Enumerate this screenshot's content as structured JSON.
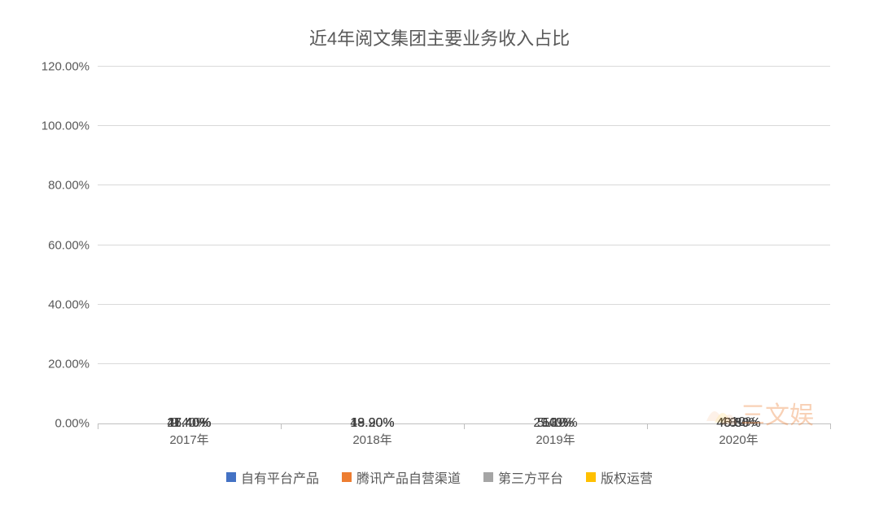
{
  "chart": {
    "type": "stacked-bar",
    "title": "近4年阅文集团主要业务收入占比",
    "title_fontsize": 22,
    "title_color": "#595959",
    "background_color": "#ffffff",
    "grid_color": "#d9d9d9",
    "axis_color": "#bfbfbf",
    "label_color": "#595959",
    "label_fontsize": 15,
    "data_label_fontsize": 16,
    "data_label_color": "#404040",
    "ylim": [
      0,
      120
    ],
    "ytick_step": 20,
    "yticks": [
      "0.00%",
      "20.00%",
      "40.00%",
      "60.00%",
      "80.00%",
      "100.00%",
      "120.00%"
    ],
    "categories": [
      "2017年",
      "2018年",
      "2019年",
      "2020年"
    ],
    "series": [
      {
        "name": "自有平台产品",
        "color": "#4472c4"
      },
      {
        "name": "腾讯产品自营渠道",
        "color": "#ed7d31"
      },
      {
        "name": "第三方平台",
        "color": "#a5a5a5"
      },
      {
        "name": "版权运营",
        "color": "#ffc000"
      }
    ],
    "bar_width_pct": 18,
    "stacks": [
      [
        {
          "value": 47.4,
          "label": "47.40%",
          "label_offset": 0
        },
        {
          "value": 26.4,
          "label": "26.40%",
          "label_offset": 0
        },
        {
          "value": 11.4,
          "label": "11.40%",
          "label_offset": 0
        },
        {
          "value": 9.4,
          "label": "9.40%",
          "label_offset": 0
        }
      ],
      [
        {
          "value": 43.9,
          "label": "43.90%",
          "label_offset": 0
        },
        {
          "value": 18.9,
          "label": "18.90%",
          "label_offset": 0
        },
        {
          "value": 13.2,
          "label": "13.20%",
          "label_offset": 0
        },
        {
          "value": 19.9,
          "label": "19.90%",
          "label_offset": 0
        }
      ],
      [
        {
          "value": 29.1,
          "label": "29.10%",
          "label_offset": 0
        },
        {
          "value": 10.0,
          "label": "10%",
          "label_offset": 0
        },
        {
          "value": 5.4,
          "label": "5.40%",
          "label_offset": 0
        },
        {
          "value": 53.0,
          "label": "53%",
          "label_offset": 0
        }
      ],
      [
        {
          "value": 45.8,
          "label": "45.80%",
          "label_offset": 0
        },
        {
          "value": 8.0,
          "label": "8%",
          "label_offset": 0
        },
        {
          "value": 4.1,
          "label": "4.10%",
          "label_offset": -10
        },
        {
          "value": 40.5,
          "label": "40.50%",
          "label_offset": 0
        }
      ]
    ],
    "watermark": {
      "text": "三文娱",
      "color": "#ed7d31",
      "opacity": 0.35
    }
  }
}
